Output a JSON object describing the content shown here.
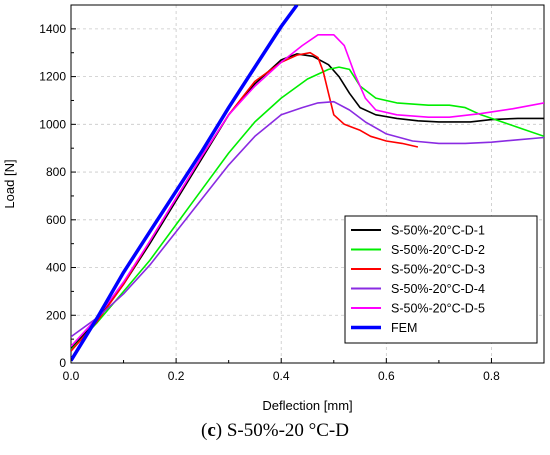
{
  "caption": {
    "letter": "c",
    "text": "S-50%-20 °C-D"
  },
  "chart_data": {
    "type": "line",
    "title": "",
    "xlabel": "Deflection [mm]",
    "ylabel": "Load [N]",
    "xlim": [
      0,
      0.9
    ],
    "ylim": [
      0,
      1500
    ],
    "xticks": [
      0.0,
      0.2,
      0.4,
      0.6,
      0.8
    ],
    "xtick_labels": [
      "0.0",
      "0.2",
      "0.4",
      "0.6",
      "0.8"
    ],
    "yticks": [
      0,
      200,
      400,
      600,
      800,
      1000,
      1200,
      1400
    ],
    "ytick_labels": [
      "0",
      "200",
      "400",
      "600",
      "800",
      "1000",
      "1200",
      "1400"
    ],
    "grid": true,
    "legend_position": "bottom-right",
    "series": [
      {
        "name": "S-50%-20°C-D-1",
        "color": "#000000",
        "points": [
          [
            0,
            60
          ],
          [
            0.05,
            180
          ],
          [
            0.1,
            330
          ],
          [
            0.15,
            500
          ],
          [
            0.2,
            680
          ],
          [
            0.25,
            860
          ],
          [
            0.3,
            1040
          ],
          [
            0.35,
            1170
          ],
          [
            0.4,
            1270
          ],
          [
            0.43,
            1295
          ],
          [
            0.46,
            1285
          ],
          [
            0.49,
            1250
          ],
          [
            0.51,
            1200
          ],
          [
            0.53,
            1130
          ],
          [
            0.55,
            1070
          ],
          [
            0.58,
            1040
          ],
          [
            0.62,
            1025
          ],
          [
            0.66,
            1015
          ],
          [
            0.7,
            1010
          ],
          [
            0.76,
            1010
          ],
          [
            0.8,
            1020
          ],
          [
            0.85,
            1025
          ],
          [
            0.9,
            1025
          ]
        ]
      },
      {
        "name": "S-50%-20°C-D-2",
        "color": "#00ee00",
        "points": [
          [
            0,
            55
          ],
          [
            0.05,
            170
          ],
          [
            0.1,
            300
          ],
          [
            0.15,
            430
          ],
          [
            0.2,
            580
          ],
          [
            0.25,
            730
          ],
          [
            0.3,
            880
          ],
          [
            0.35,
            1010
          ],
          [
            0.4,
            1110
          ],
          [
            0.45,
            1190
          ],
          [
            0.49,
            1230
          ],
          [
            0.51,
            1240
          ],
          [
            0.53,
            1230
          ],
          [
            0.55,
            1160
          ],
          [
            0.58,
            1110
          ],
          [
            0.62,
            1090
          ],
          [
            0.68,
            1080
          ],
          [
            0.72,
            1080
          ],
          [
            0.75,
            1070
          ],
          [
            0.78,
            1040
          ],
          [
            0.82,
            1010
          ],
          [
            0.86,
            980
          ],
          [
            0.9,
            950
          ]
        ]
      },
      {
        "name": "S-50%-20°C-D-3",
        "color": "#ff0000",
        "points": [
          [
            0,
            50
          ],
          [
            0.05,
            175
          ],
          [
            0.1,
            330
          ],
          [
            0.15,
            510
          ],
          [
            0.2,
            690
          ],
          [
            0.25,
            870
          ],
          [
            0.3,
            1040
          ],
          [
            0.35,
            1180
          ],
          [
            0.4,
            1260
          ],
          [
            0.43,
            1290
          ],
          [
            0.455,
            1300
          ],
          [
            0.47,
            1280
          ],
          [
            0.48,
            1220
          ],
          [
            0.49,
            1130
          ],
          [
            0.5,
            1040
          ],
          [
            0.52,
            1000
          ],
          [
            0.55,
            975
          ],
          [
            0.57,
            950
          ],
          [
            0.6,
            930
          ],
          [
            0.63,
            920
          ],
          [
            0.66,
            905
          ]
        ]
      },
      {
        "name": "S-50%-20°C-D-4",
        "color": "#8a2be2",
        "points": [
          [
            0,
            110
          ],
          [
            0.05,
            190
          ],
          [
            0.1,
            290
          ],
          [
            0.15,
            410
          ],
          [
            0.2,
            550
          ],
          [
            0.25,
            690
          ],
          [
            0.3,
            830
          ],
          [
            0.35,
            950
          ],
          [
            0.4,
            1040
          ],
          [
            0.44,
            1070
          ],
          [
            0.47,
            1090
          ],
          [
            0.5,
            1095
          ],
          [
            0.53,
            1060
          ],
          [
            0.56,
            1010
          ],
          [
            0.6,
            960
          ],
          [
            0.65,
            930
          ],
          [
            0.7,
            920
          ],
          [
            0.75,
            920
          ],
          [
            0.8,
            925
          ],
          [
            0.85,
            935
          ],
          [
            0.9,
            945
          ]
        ]
      },
      {
        "name": "S-50%-20°C-D-5",
        "color": "#ff00ff",
        "points": [
          [
            0,
            70
          ],
          [
            0.05,
            190
          ],
          [
            0.1,
            340
          ],
          [
            0.15,
            510
          ],
          [
            0.2,
            690
          ],
          [
            0.25,
            870
          ],
          [
            0.3,
            1040
          ],
          [
            0.35,
            1160
          ],
          [
            0.4,
            1260
          ],
          [
            0.44,
            1330
          ],
          [
            0.47,
            1375
          ],
          [
            0.5,
            1375
          ],
          [
            0.52,
            1330
          ],
          [
            0.54,
            1210
          ],
          [
            0.56,
            1110
          ],
          [
            0.58,
            1060
          ],
          [
            0.62,
            1040
          ],
          [
            0.68,
            1030
          ],
          [
            0.72,
            1030
          ],
          [
            0.78,
            1045
          ],
          [
            0.84,
            1065
          ],
          [
            0.9,
            1090
          ]
        ]
      },
      {
        "name": "FEM",
        "color": "#0000ff",
        "points": [
          [
            0,
            10
          ],
          [
            0.05,
            190
          ],
          [
            0.1,
            380
          ],
          [
            0.15,
            550
          ],
          [
            0.2,
            720
          ],
          [
            0.25,
            890
          ],
          [
            0.3,
            1070
          ],
          [
            0.35,
            1240
          ],
          [
            0.4,
            1410
          ],
          [
            0.43,
            1500
          ]
        ]
      }
    ]
  }
}
